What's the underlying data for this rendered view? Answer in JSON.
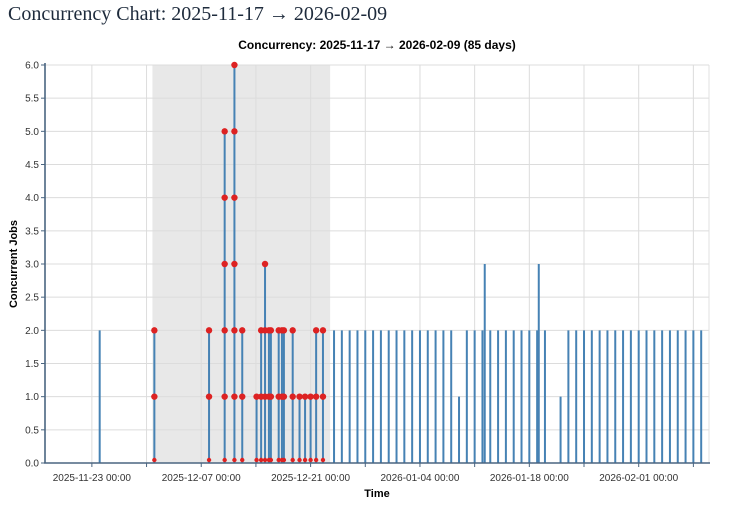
{
  "page": {
    "title": "Concurrency Chart: 2025-11-17 → 2026-02-09"
  },
  "chart_data": {
    "type": "stem",
    "title": "Concurrency: 2025-11-17 → 2026-02-09 (85 days)",
    "xlabel": "Time",
    "ylabel": "Concurrent Jobs",
    "x_range": [
      "2025-11-17 00:00",
      "2026-02-10 00:00"
    ],
    "ylim": [
      0,
      6
    ],
    "y_tick_step": 0.5,
    "y_tick_labels": [
      "0.0",
      "0.5",
      "1.0",
      "1.5",
      "2.0",
      "2.5",
      "3.0",
      "3.5",
      "4.0",
      "4.5",
      "5.0",
      "5.5",
      "6.0"
    ],
    "x_tick_step_days": 7,
    "x_tick_labels": [
      "2025-11-23 00:00",
      "2025-12-07 00:00",
      "2025-12-21 00:00",
      "2026-01-04 00:00",
      "2026-01-18 00:00",
      "2026-02-01 00:00"
    ],
    "grid": true,
    "shaded_region": {
      "start": "2025-11-30 18:00",
      "end": "2025-12-23 12:00"
    },
    "marker_rule": "stems flagged 1 carry red dots at every integer level up to their value plus a small red dot at the baseline",
    "colors": {
      "stem": "#4682b4",
      "marker": "#dd2222",
      "band": "#e8e8e8",
      "grid": "#dcdcdc",
      "axis": "#4a6580",
      "right_border": "#e0e0e0",
      "tick_text": "#333333",
      "page_title": "#1e2b3c"
    },
    "stems": [
      [
        "2025-11-24 00:00",
        2,
        0
      ],
      [
        "2025-12-01 00:00",
        2,
        1
      ],
      [
        "2025-12-08 00:00",
        2,
        1
      ],
      [
        "2025-12-10 00:00",
        5,
        1
      ],
      [
        "2025-12-11 06:00",
        6,
        1
      ],
      [
        "2025-12-12 06:00",
        2,
        1
      ],
      [
        "2025-12-14 02:00",
        1,
        1
      ],
      [
        "2025-12-14 16:00",
        2,
        1
      ],
      [
        "2025-12-15 04:00",
        3,
        1
      ],
      [
        "2025-12-15 16:00",
        2,
        1
      ],
      [
        "2025-12-15 22:00",
        2,
        1
      ],
      [
        "2025-12-16 22:00",
        2,
        1
      ],
      [
        "2025-12-17 08:00",
        2,
        1
      ],
      [
        "2025-12-17 14:00",
        2,
        1
      ],
      [
        "2025-12-18 17:00",
        2,
        1
      ],
      [
        "2025-12-19 14:00",
        1,
        1
      ],
      [
        "2025-12-20 07:00",
        1,
        1
      ],
      [
        "2025-12-21 00:00",
        1,
        1
      ],
      [
        "2025-12-21 17:00",
        2,
        1
      ],
      [
        "2025-12-22 14:00",
        2,
        1
      ],
      [
        "2025-12-24 00:00",
        2,
        0
      ],
      [
        "2025-12-25 00:00",
        2,
        0
      ],
      [
        "2025-12-26 00:00",
        2,
        0
      ],
      [
        "2025-12-27 00:00",
        2,
        0
      ],
      [
        "2025-12-28 00:00",
        2,
        0
      ],
      [
        "2025-12-29 00:00",
        2,
        0
      ],
      [
        "2025-12-30 00:00",
        2,
        0
      ],
      [
        "2025-12-31 00:00",
        2,
        0
      ],
      [
        "2026-01-01 00:00",
        2,
        0
      ],
      [
        "2026-01-02 00:00",
        2,
        0
      ],
      [
        "2026-01-03 00:00",
        2,
        0
      ],
      [
        "2026-01-04 00:00",
        2,
        0
      ],
      [
        "2026-01-05 00:00",
        2,
        0
      ],
      [
        "2026-01-06 00:00",
        2,
        0
      ],
      [
        "2026-01-07 00:00",
        2,
        0
      ],
      [
        "2026-01-08 00:00",
        2,
        0
      ],
      [
        "2026-01-09 00:00",
        1,
        0
      ],
      [
        "2026-01-10 00:00",
        2,
        0
      ],
      [
        "2026-01-11 00:00",
        2,
        0
      ],
      [
        "2026-01-12 00:00",
        2,
        0
      ],
      [
        "2026-01-12 07:00",
        3,
        0
      ],
      [
        "2026-01-13 00:00",
        2,
        0
      ],
      [
        "2026-01-14 00:00",
        2,
        0
      ],
      [
        "2026-01-15 00:00",
        2,
        0
      ],
      [
        "2026-01-16 00:00",
        2,
        0
      ],
      [
        "2026-01-17 00:00",
        2,
        0
      ],
      [
        "2026-01-18 00:00",
        2,
        0
      ],
      [
        "2026-01-19 00:00",
        2,
        0
      ],
      [
        "2026-01-19 05:00",
        3,
        0
      ],
      [
        "2026-01-20 00:00",
        2,
        0
      ],
      [
        "2026-01-22 00:00",
        1,
        0
      ],
      [
        "2026-01-23 00:00",
        2,
        0
      ],
      [
        "2026-01-24 00:00",
        2,
        0
      ],
      [
        "2026-01-25 00:00",
        2,
        0
      ],
      [
        "2026-01-26 00:00",
        2,
        0
      ],
      [
        "2026-01-27 00:00",
        2,
        0
      ],
      [
        "2026-01-28 00:00",
        2,
        0
      ],
      [
        "2026-01-29 00:00",
        2,
        0
      ],
      [
        "2026-01-30 00:00",
        2,
        0
      ],
      [
        "2026-01-31 00:00",
        2,
        0
      ],
      [
        "2026-02-01 00:00",
        2,
        0
      ],
      [
        "2026-02-02 00:00",
        2,
        0
      ],
      [
        "2026-02-03 00:00",
        2,
        0
      ],
      [
        "2026-02-04 00:00",
        2,
        0
      ],
      [
        "2026-02-05 00:00",
        2,
        0
      ],
      [
        "2026-02-06 00:00",
        2,
        0
      ],
      [
        "2026-02-07 00:00",
        2,
        0
      ],
      [
        "2026-02-08 00:00",
        2,
        0
      ],
      [
        "2026-02-09 00:00",
        2,
        0
      ]
    ]
  }
}
